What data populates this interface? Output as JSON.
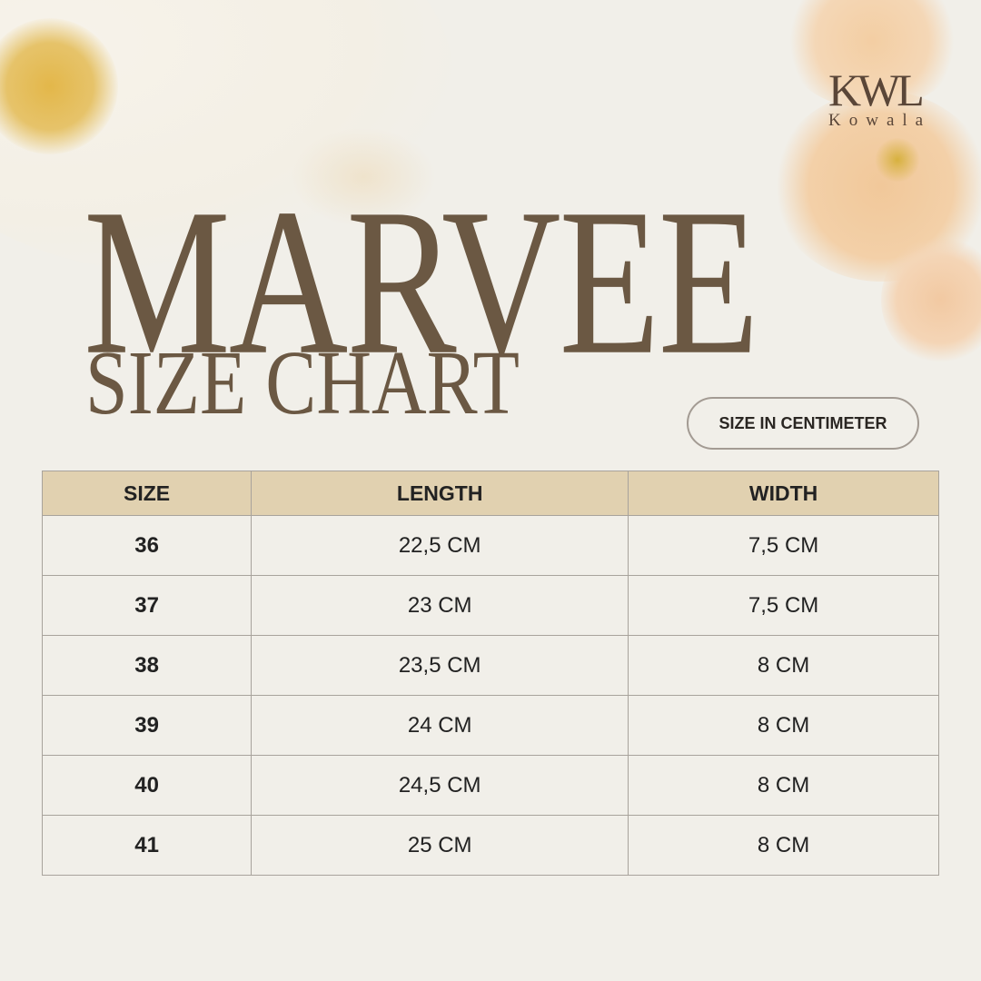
{
  "logo": {
    "mark": "KWL",
    "name": "Kowala"
  },
  "title": "MARVEE",
  "subtitle": "SIZE CHART",
  "unit_badge": "SIZE IN CENTIMETER",
  "colors": {
    "title": "#6b5843",
    "header_bg": "#e1d1b0",
    "background": "#f1efe9"
  },
  "table": {
    "headers": [
      "SIZE",
      "LENGTH",
      "WIDTH"
    ],
    "rows": [
      [
        "36",
        "22,5 CM",
        "7,5 CM"
      ],
      [
        "37",
        "23 CM",
        "7,5 CM"
      ],
      [
        "38",
        "23,5 CM",
        "8 CM"
      ],
      [
        "39",
        "24 CM",
        "8 CM"
      ],
      [
        "40",
        "24,5 CM",
        "8 CM"
      ],
      [
        "41",
        "25 CM",
        "8 CM"
      ]
    ]
  }
}
